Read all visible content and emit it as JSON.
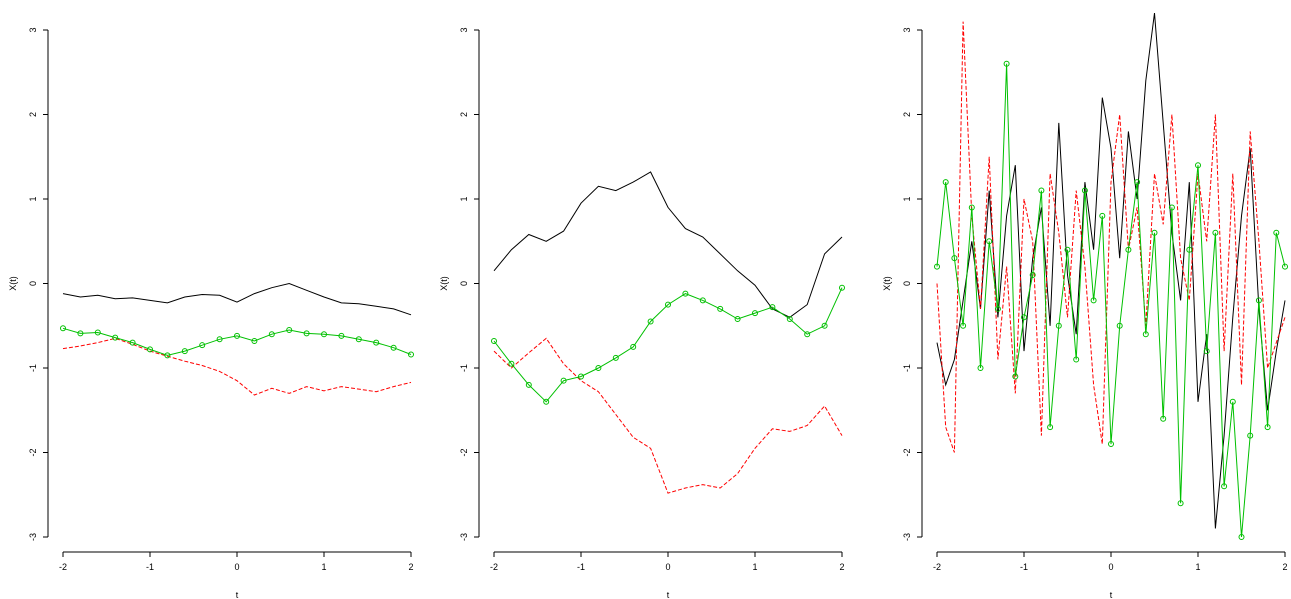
{
  "chart_data": [
    {
      "type": "line",
      "title": "",
      "xlabel": "t",
      "ylabel": "X(t)",
      "xlim": [
        -2,
        2
      ],
      "ylim": [
        -3,
        3
      ],
      "xticks": [
        "-2",
        "-1",
        "0",
        "1",
        "2"
      ],
      "yticks": [
        "-3",
        "-2",
        "-1",
        "0",
        "1",
        "2",
        "3"
      ],
      "grid": false,
      "series": [
        {
          "color": "#000000",
          "style": "solid",
          "marker": "none",
          "x": [
            -2,
            -1.8,
            -1.6,
            -1.4,
            -1.2,
            -1,
            -0.8,
            -0.6,
            -0.4,
            -0.2,
            0,
            0.2,
            0.4,
            0.6,
            0.8,
            1,
            1.2,
            1.4,
            1.6,
            1.8,
            2
          ],
          "y": [
            -0.12,
            -0.16,
            -0.14,
            -0.18,
            -0.17,
            -0.2,
            -0.23,
            -0.16,
            -0.13,
            -0.14,
            -0.22,
            -0.12,
            -0.05,
            0.0,
            -0.08,
            -0.16,
            -0.23,
            -0.24,
            -0.27,
            -0.3,
            -0.37
          ]
        },
        {
          "color": "#ff0000",
          "style": "dashed",
          "marker": "none",
          "x": [
            -2,
            -1.8,
            -1.6,
            -1.4,
            -1.2,
            -1,
            -0.8,
            -0.6,
            -0.4,
            -0.2,
            0,
            0.2,
            0.4,
            0.6,
            0.8,
            1,
            1.2,
            1.4,
            1.6,
            1.8,
            2
          ],
          "y": [
            -0.77,
            -0.74,
            -0.7,
            -0.65,
            -0.72,
            -0.8,
            -0.86,
            -0.92,
            -0.97,
            -1.04,
            -1.15,
            -1.32,
            -1.24,
            -1.3,
            -1.22,
            -1.27,
            -1.22,
            -1.25,
            -1.28,
            -1.22,
            -1.17
          ]
        },
        {
          "color": "#00c000",
          "style": "solid",
          "marker": "circle",
          "x": [
            -2,
            -1.8,
            -1.6,
            -1.4,
            -1.2,
            -1,
            -0.8,
            -0.6,
            -0.4,
            -0.2,
            0,
            0.2,
            0.4,
            0.6,
            0.8,
            1,
            1.2,
            1.4,
            1.6,
            1.8,
            2
          ],
          "y": [
            -0.53,
            -0.59,
            -0.58,
            -0.64,
            -0.7,
            -0.78,
            -0.85,
            -0.8,
            -0.73,
            -0.66,
            -0.62,
            -0.68,
            -0.6,
            -0.55,
            -0.59,
            -0.6,
            -0.62,
            -0.66,
            -0.7,
            -0.76,
            -0.84
          ]
        }
      ]
    },
    {
      "type": "line",
      "title": "",
      "xlabel": "t",
      "ylabel": "X(t)",
      "xlim": [
        -2,
        2
      ],
      "ylim": [
        -3,
        3
      ],
      "xticks": [
        "-2",
        "-1",
        "0",
        "1",
        "2"
      ],
      "yticks": [
        "-3",
        "-2",
        "-1",
        "0",
        "1",
        "2",
        "3"
      ],
      "grid": false,
      "series": [
        {
          "color": "#000000",
          "style": "solid",
          "marker": "none",
          "x": [
            -2,
            -1.8,
            -1.6,
            -1.4,
            -1.2,
            -1,
            -0.8,
            -0.6,
            -0.4,
            -0.2,
            0,
            0.2,
            0.4,
            0.6,
            0.8,
            1,
            1.2,
            1.4,
            1.6,
            1.8,
            2
          ],
          "y": [
            0.15,
            0.4,
            0.58,
            0.5,
            0.62,
            0.95,
            1.15,
            1.1,
            1.2,
            1.32,
            0.9,
            0.65,
            0.55,
            0.35,
            0.15,
            -0.02,
            -0.3,
            -0.4,
            -0.25,
            0.35,
            0.55
          ]
        },
        {
          "color": "#ff0000",
          "style": "dashed",
          "marker": "none",
          "x": [
            -2,
            -1.8,
            -1.6,
            -1.4,
            -1.2,
            -1,
            -0.8,
            -0.6,
            -0.4,
            -0.2,
            0,
            0.2,
            0.4,
            0.6,
            0.8,
            1,
            1.2,
            1.4,
            1.6,
            1.8,
            2
          ],
          "y": [
            -0.8,
            -1.0,
            -0.82,
            -0.65,
            -0.95,
            -1.15,
            -1.28,
            -1.55,
            -1.82,
            -1.95,
            -2.48,
            -2.42,
            -2.38,
            -2.42,
            -2.25,
            -1.95,
            -1.72,
            -1.75,
            -1.68,
            -1.45,
            -1.8
          ]
        },
        {
          "color": "#00c000",
          "style": "solid",
          "marker": "circle",
          "x": [
            -2,
            -1.8,
            -1.6,
            -1.4,
            -1.2,
            -1,
            -0.8,
            -0.6,
            -0.4,
            -0.2,
            0,
            0.2,
            0.4,
            0.6,
            0.8,
            1,
            1.2,
            1.4,
            1.6,
            1.8,
            2
          ],
          "y": [
            -0.68,
            -0.95,
            -1.2,
            -1.4,
            -1.15,
            -1.1,
            -1.0,
            -0.88,
            -0.75,
            -0.45,
            -0.25,
            -0.12,
            -0.2,
            -0.3,
            -0.42,
            -0.35,
            -0.28,
            -0.42,
            -0.6,
            -0.5,
            -0.05
          ]
        }
      ]
    },
    {
      "type": "line",
      "title": "",
      "xlabel": "t",
      "ylabel": "X(t)",
      "xlim": [
        -2,
        2
      ],
      "ylim": [
        -3,
        3
      ],
      "xticks": [
        "-2",
        "-1",
        "0",
        "1",
        "2"
      ],
      "yticks": [
        "-3",
        "-2",
        "-1",
        "0",
        "1",
        "2",
        "3"
      ],
      "grid": false,
      "series": [
        {
          "color": "#000000",
          "style": "solid",
          "marker": "none",
          "x": [
            -2,
            -1.9,
            -1.8,
            -1.7,
            -1.6,
            -1.5,
            -1.4,
            -1.3,
            -1.2,
            -1.1,
            -1,
            -0.9,
            -0.8,
            -0.7,
            -0.6,
            -0.5,
            -0.4,
            -0.3,
            -0.2,
            -0.1,
            0,
            0.1,
            0.2,
            0.3,
            0.4,
            0.5,
            0.6,
            0.7,
            0.8,
            0.9,
            1,
            1.1,
            1.2,
            1.3,
            1.4,
            1.5,
            1.6,
            1.7,
            1.8,
            1.9,
            2
          ],
          "y": [
            -0.7,
            -1.2,
            -0.9,
            -0.2,
            0.5,
            -0.3,
            1.1,
            -0.4,
            0.8,
            1.4,
            -0.8,
            0.3,
            0.9,
            -0.5,
            1.9,
            0.1,
            -0.6,
            1.2,
            0.4,
            2.2,
            1.6,
            0.3,
            1.8,
            1.0,
            2.4,
            3.2,
            1.9,
            0.6,
            -0.2,
            1.2,
            -1.4,
            -0.6,
            -2.9,
            -1.8,
            -0.4,
            0.8,
            1.6,
            -0.3,
            -1.5,
            -0.8,
            -0.2
          ]
        },
        {
          "color": "#ff0000",
          "style": "dashed",
          "marker": "none",
          "x": [
            -2,
            -1.9,
            -1.8,
            -1.7,
            -1.6,
            -1.5,
            -1.4,
            -1.3,
            -1.2,
            -1.1,
            -1,
            -0.9,
            -0.8,
            -0.7,
            -0.6,
            -0.5,
            -0.4,
            -0.3,
            -0.2,
            -0.1,
            0,
            0.1,
            0.2,
            0.3,
            0.4,
            0.5,
            0.6,
            0.7,
            0.8,
            0.9,
            1,
            1.1,
            1.2,
            1.3,
            1.4,
            1.5,
            1.6,
            1.7,
            1.8,
            1.9,
            2
          ],
          "y": [
            0.0,
            -1.7,
            -2.0,
            3.1,
            0.8,
            -0.3,
            1.5,
            -0.9,
            0.2,
            -1.3,
            1.0,
            0.5,
            -1.8,
            1.3,
            0.6,
            -0.4,
            1.1,
            0.2,
            -1.2,
            -1.9,
            1.2,
            2.0,
            0.4,
            0.9,
            -0.5,
            1.3,
            0.7,
            2.0,
            0.3,
            -0.2,
            1.3,
            0.5,
            2.0,
            -0.8,
            1.3,
            -1.2,
            1.8,
            0.5,
            -1.0,
            -0.7,
            -0.4
          ]
        },
        {
          "color": "#00c000",
          "style": "solid",
          "marker": "circle",
          "x": [
            -2,
            -1.9,
            -1.8,
            -1.7,
            -1.6,
            -1.5,
            -1.4,
            -1.3,
            -1.2,
            -1.1,
            -1,
            -0.9,
            -0.8,
            -0.7,
            -0.6,
            -0.5,
            -0.4,
            -0.3,
            -0.2,
            -0.1,
            0,
            0.1,
            0.2,
            0.3,
            0.4,
            0.5,
            0.6,
            0.7,
            0.8,
            0.9,
            1,
            1.1,
            1.2,
            1.3,
            1.4,
            1.5,
            1.6,
            1.7,
            1.8,
            1.9,
            2
          ],
          "y": [
            0.2,
            1.2,
            0.3,
            -0.5,
            0.9,
            -1.0,
            0.5,
            -0.3,
            2.6,
            -1.1,
            -0.4,
            0.1,
            1.1,
            -1.7,
            -0.5,
            0.4,
            -0.9,
            1.1,
            -0.2,
            0.8,
            -1.9,
            -0.5,
            0.4,
            1.2,
            -0.6,
            0.6,
            -1.6,
            0.9,
            -2.6,
            0.4,
            1.4,
            -0.8,
            0.6,
            -2.4,
            -1.4,
            -3.0,
            -1.8,
            -0.2,
            -1.7,
            0.6,
            0.2
          ]
        }
      ]
    }
  ]
}
